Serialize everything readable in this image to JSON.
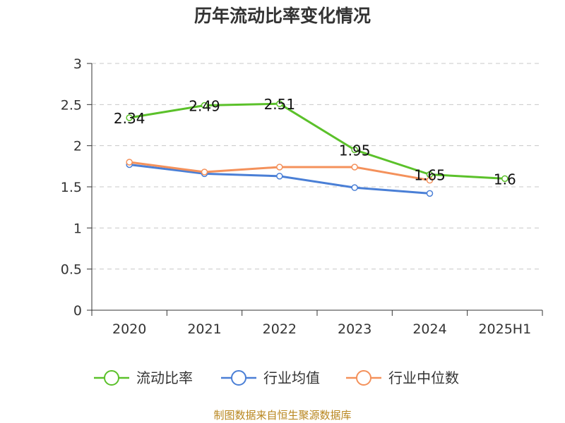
{
  "chart_data": {
    "type": "line",
    "title": "历年流动比率变化情况",
    "categories": [
      "2020",
      "2021",
      "2022",
      "2023",
      "2024",
      "2025H1"
    ],
    "ylim": [
      0,
      3
    ],
    "yticks": [
      "0",
      "0.5",
      "1",
      "1.5",
      "2",
      "2.5",
      "3"
    ],
    "grid": true,
    "legend_position": "bottom",
    "series": [
      {
        "name": "流动比率",
        "color": "#5bc12a",
        "values": [
          2.34,
          2.49,
          2.51,
          1.95,
          1.65,
          1.6
        ],
        "labels": [
          "2.34",
          "2.49",
          "2.51",
          "1.95",
          "1.65",
          "1.6"
        ]
      },
      {
        "name": "行业均值",
        "color": "#4a7fd6",
        "values": [
          1.77,
          1.66,
          1.63,
          1.49,
          1.42,
          null
        ]
      },
      {
        "name": "行业中位数",
        "color": "#f4915b",
        "values": [
          1.8,
          1.68,
          1.74,
          1.74,
          1.58,
          null
        ]
      }
    ]
  },
  "source_text": "制图数据来自恒生聚源数据库"
}
